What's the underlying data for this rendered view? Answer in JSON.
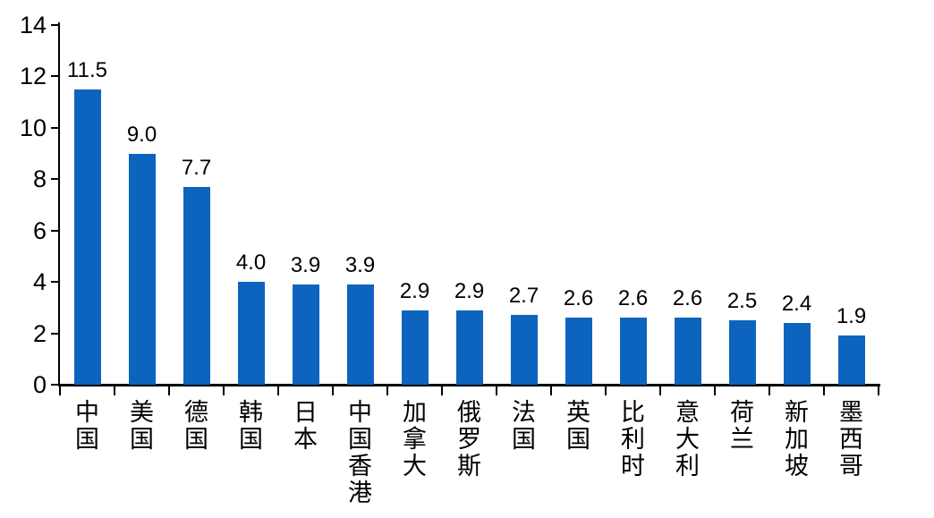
{
  "chart_data": {
    "type": "bar",
    "title": "",
    "xlabel": "",
    "ylabel": "",
    "categories": [
      "中国",
      "美国",
      "德国",
      "韩国",
      "日本",
      "中国香港",
      "加拿大",
      "俄罗斯",
      "法国",
      "英国",
      "比利时",
      "意大利",
      "荷兰",
      "新加坡",
      "墨西哥"
    ],
    "values": [
      11.5,
      9.0,
      7.7,
      4.0,
      3.9,
      3.9,
      2.9,
      2.9,
      2.7,
      2.6,
      2.6,
      2.6,
      2.5,
      2.4,
      1.9
    ],
    "value_labels": [
      "11.5",
      "9.0",
      "7.7",
      "4.0",
      "3.9",
      "3.9",
      "2.9",
      "2.9",
      "2.7",
      "2.6",
      "2.6",
      "2.6",
      "2.5",
      "2.4",
      "1.9"
    ],
    "ylim": [
      0,
      14
    ],
    "yticks": [
      0,
      2,
      4,
      6,
      8,
      10,
      12,
      14
    ],
    "grid": false,
    "legend": null,
    "bar_color": "#0D64BE",
    "axis_color": "#000000",
    "text_color": "#000000"
  }
}
